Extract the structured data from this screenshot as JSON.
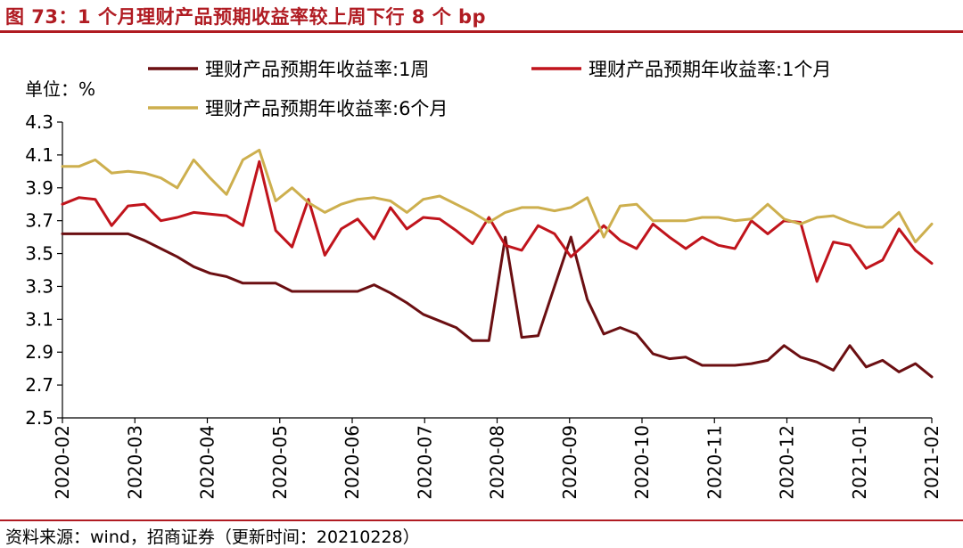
{
  "header": {
    "title": "图 73：1 个月理财产品预期收益率较上周下行 8 个 bp"
  },
  "unit": "单位：%",
  "footer": {
    "source": "资料来源：wind，招商证券（更新时间：20210228）"
  },
  "chart_data": {
    "type": "line",
    "x_tick_labels": [
      "2020-02",
      "2020-03",
      "2020-04",
      "2020-05",
      "2020-06",
      "2020-07",
      "2020-08",
      "2020-09",
      "2020-10",
      "2020-11",
      "2020-12",
      "2021-01",
      "2021-02"
    ],
    "y_tick_labels": [
      "2.5",
      "2.7",
      "2.9",
      "3.1",
      "3.3",
      "3.5",
      "3.7",
      "3.9",
      "4.1",
      "4.3"
    ],
    "ylim": [
      2.5,
      4.3
    ],
    "grid": false,
    "legend_position": "top",
    "series": [
      {
        "name": "理财产品预期年收益率:1周",
        "color": "#6b0f12",
        "values": [
          3.62,
          3.62,
          3.62,
          3.62,
          3.62,
          3.58,
          3.53,
          3.48,
          3.42,
          3.38,
          3.36,
          3.32,
          3.32,
          3.32,
          3.27,
          3.27,
          3.27,
          3.27,
          3.27,
          3.31,
          3.26,
          3.2,
          3.13,
          3.09,
          3.05,
          2.97,
          2.97,
          3.6,
          2.99,
          3.0,
          3.3,
          3.6,
          3.22,
          3.01,
          3.05,
          3.01,
          2.89,
          2.86,
          2.87,
          2.82,
          2.82,
          2.82,
          2.83,
          2.85,
          2.94,
          2.87,
          2.84,
          2.79,
          2.94,
          2.81,
          2.85,
          2.78,
          2.83,
          2.75
        ]
      },
      {
        "name": "理财产品预期年收益率:1个月",
        "color": "#c0141c",
        "values": [
          3.8,
          3.84,
          3.83,
          3.67,
          3.79,
          3.8,
          3.7,
          3.72,
          3.75,
          3.74,
          3.73,
          3.67,
          4.06,
          3.64,
          3.54,
          3.83,
          3.49,
          3.65,
          3.71,
          3.59,
          3.78,
          3.65,
          3.72,
          3.71,
          3.64,
          3.56,
          3.72,
          3.55,
          3.52,
          3.67,
          3.62,
          3.48,
          3.57,
          3.67,
          3.58,
          3.53,
          3.68,
          3.6,
          3.53,
          3.6,
          3.55,
          3.53,
          3.7,
          3.62,
          3.7,
          3.69,
          3.33,
          3.57,
          3.55,
          3.41,
          3.46,
          3.65,
          3.52,
          3.44
        ]
      },
      {
        "name": "理财产品预期年收益率:6个月",
        "color": "#cdaf4e",
        "values": [
          4.03,
          4.03,
          4.07,
          3.99,
          4.0,
          3.99,
          3.96,
          3.9,
          4.07,
          3.96,
          3.86,
          4.07,
          4.13,
          3.82,
          3.9,
          3.81,
          3.75,
          3.8,
          3.83,
          3.84,
          3.82,
          3.75,
          3.83,
          3.85,
          3.8,
          3.75,
          3.69,
          3.75,
          3.78,
          3.78,
          3.76,
          3.78,
          3.84,
          3.6,
          3.79,
          3.8,
          3.7,
          3.7,
          3.7,
          3.72,
          3.72,
          3.7,
          3.71,
          3.8,
          3.71,
          3.68,
          3.72,
          3.73,
          3.69,
          3.66,
          3.66,
          3.75,
          3.57,
          3.68
        ]
      }
    ]
  }
}
